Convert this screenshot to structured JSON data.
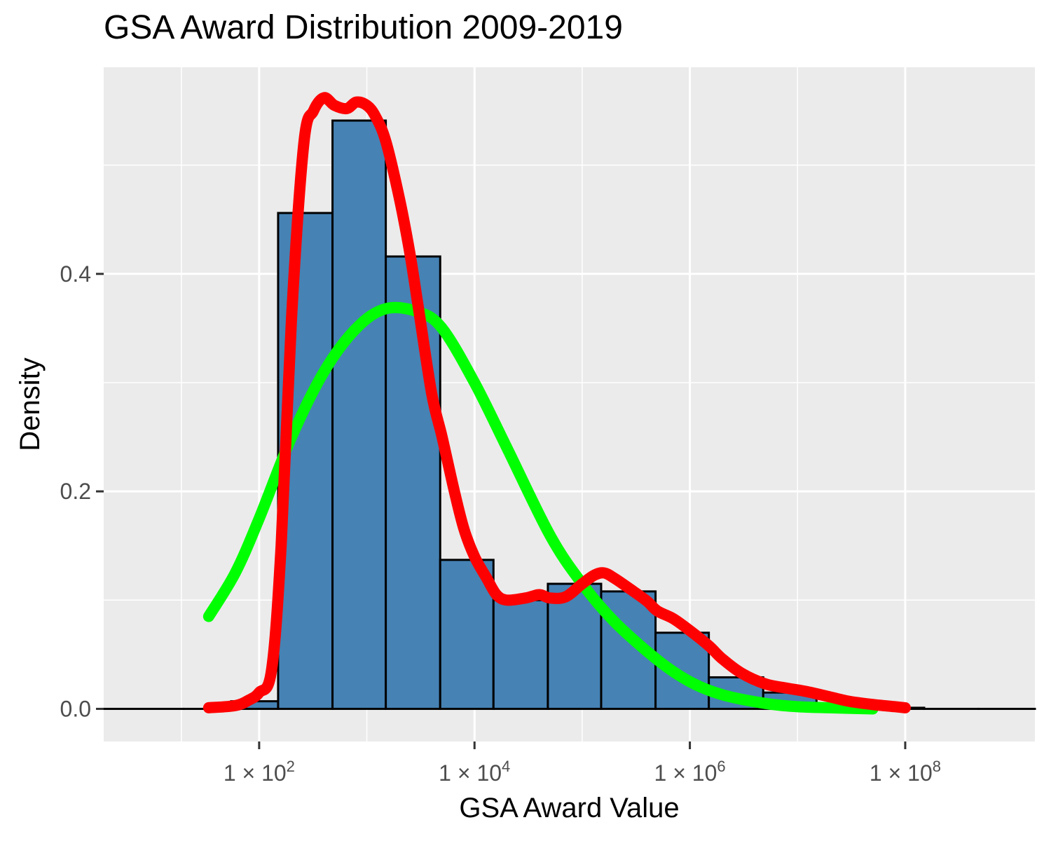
{
  "chart_data": {
    "type": "bar",
    "title": "GSA Award Distribution 2009-2019",
    "xlabel": "GSA Award Value",
    "ylabel": "Density",
    "x_scale": "log10",
    "x_range": [
      3.6,
      1600000000
    ],
    "ylim": [
      -0.03,
      0.59
    ],
    "grid": true,
    "x_ticks": [
      {
        "value": 100,
        "mantissa": "1",
        "times": "×",
        "base": "10",
        "exponent": "2"
      },
      {
        "value": 10000,
        "mantissa": "1",
        "times": "×",
        "base": "10",
        "exponent": "4"
      },
      {
        "value": 1000000,
        "mantissa": "1",
        "times": "×",
        "base": "10",
        "exponent": "6"
      },
      {
        "value": 100000000,
        "mantissa": "1",
        "times": "×",
        "base": "10",
        "exponent": "8"
      }
    ],
    "y_ticks": [
      {
        "value": 0.0,
        "label": "0.0"
      },
      {
        "value": 0.2,
        "label": "0.2"
      },
      {
        "value": 0.4,
        "label": "0.4"
      }
    ],
    "histogram": {
      "fill": "#4682b4",
      "stroke": "#000000",
      "bins": [
        {
          "x_start": 3.6,
          "x_end": 20,
          "density": 0.0
        },
        {
          "x_start": 20,
          "x_end": 55,
          "density": 0.0
        },
        {
          "x_start": 55,
          "x_end": 150,
          "density": 0.007
        },
        {
          "x_start": 150,
          "x_end": 480,
          "density": 0.456
        },
        {
          "x_start": 480,
          "x_end": 1500,
          "density": 0.541
        },
        {
          "x_start": 1500,
          "x_end": 4800,
          "density": 0.416
        },
        {
          "x_start": 4800,
          "x_end": 15000,
          "density": 0.137
        },
        {
          "x_start": 15000,
          "x_end": 48000,
          "density": 0.1
        },
        {
          "x_start": 48000,
          "x_end": 150000,
          "density": 0.115
        },
        {
          "x_start": 150000,
          "x_end": 480000,
          "density": 0.108
        },
        {
          "x_start": 480000,
          "x_end": 1500000,
          "density": 0.07
        },
        {
          "x_start": 1500000,
          "x_end": 4800000,
          "density": 0.029
        },
        {
          "x_start": 4800000,
          "x_end": 15000000,
          "density": 0.015
        },
        {
          "x_start": 15000000,
          "x_end": 48000000,
          "density": 0.002
        },
        {
          "x_start": 48000000,
          "x_end": 150000000,
          "density": 0.001
        },
        {
          "x_start": 150000000,
          "x_end": 480000000,
          "density": 0.0
        },
        {
          "x_start": 480000000,
          "x_end": 1600000000,
          "density": 0.0
        }
      ]
    },
    "series": [
      {
        "type": "line",
        "color": "#00ff00",
        "x": [
          34,
          60,
          100,
          200,
          400,
          800,
          1500,
          3000,
          5000,
          10000,
          20000,
          50000,
          100000,
          200000,
          500000,
          1000000,
          2000000,
          5000000,
          10000000,
          20000000,
          50000000
        ],
        "y": [
          0.085,
          0.125,
          0.175,
          0.25,
          0.31,
          0.35,
          0.368,
          0.365,
          0.35,
          0.3,
          0.24,
          0.16,
          0.115,
          0.08,
          0.045,
          0.025,
          0.013,
          0.005,
          0.002,
          0.001,
          0.0
        ]
      },
      {
        "type": "line",
        "color": "#ff0000",
        "x": [
          34,
          60,
          80,
          100,
          130,
          160,
          200,
          260,
          320,
          400,
          500,
          650,
          800,
          1000,
          1200,
          1500,
          2000,
          2500,
          3000,
          4000,
          5000,
          6500,
          8000,
          10000,
          13000,
          16000,
          20000,
          30000,
          40000,
          50000,
          70000,
          100000,
          130000,
          160000,
          200000,
          300000,
          400000,
          500000,
          700000,
          1000000,
          1500000,
          2000000,
          3000000,
          5000000,
          8000000,
          12000000,
          20000000,
          30000000,
          50000000,
          80000000,
          100000000
        ],
        "y": [
          0.001,
          0.003,
          0.008,
          0.015,
          0.035,
          0.15,
          0.36,
          0.52,
          0.55,
          0.562,
          0.555,
          0.552,
          0.558,
          0.555,
          0.545,
          0.522,
          0.47,
          0.42,
          0.37,
          0.29,
          0.25,
          0.2,
          0.165,
          0.14,
          0.12,
          0.105,
          0.1,
          0.102,
          0.105,
          0.102,
          0.103,
          0.115,
          0.123,
          0.125,
          0.12,
          0.108,
          0.099,
          0.09,
          0.083,
          0.072,
          0.058,
          0.046,
          0.033,
          0.023,
          0.019,
          0.016,
          0.011,
          0.007,
          0.004,
          0.002,
          0.001
        ]
      }
    ]
  }
}
